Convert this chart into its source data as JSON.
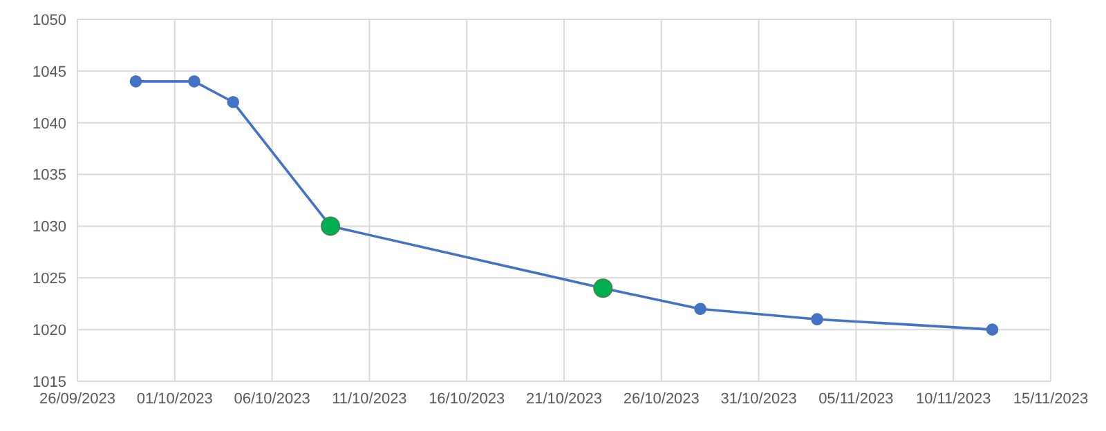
{
  "chart_data": {
    "type": "line",
    "marker": "circle",
    "line_style": "solid",
    "grid": true,
    "legend": false,
    "xlim": [
      "2023-09-26",
      "2023-11-15"
    ],
    "xticks": [
      {
        "value": "2023-09-26",
        "label": "26/09/2023"
      },
      {
        "value": "2023-10-01",
        "label": "01/10/2023"
      },
      {
        "value": "2023-10-06",
        "label": "06/10/2023"
      },
      {
        "value": "2023-10-11",
        "label": "11/10/2023"
      },
      {
        "value": "2023-10-16",
        "label": "16/10/2023"
      },
      {
        "value": "2023-10-21",
        "label": "21/10/2023"
      },
      {
        "value": "2023-10-26",
        "label": "26/10/2023"
      },
      {
        "value": "2023-10-31",
        "label": "31/10/2023"
      },
      {
        "value": "2023-11-05",
        "label": "05/11/2023"
      },
      {
        "value": "2023-11-10",
        "label": "10/11/2023"
      },
      {
        "value": "2023-11-15",
        "label": "15/11/2023"
      }
    ],
    "ylim": [
      1015,
      1050
    ],
    "yticks": [
      1015,
      1020,
      1025,
      1030,
      1035,
      1040,
      1045,
      1050
    ],
    "series": [
      {
        "type": "line",
        "color": "#4472c4",
        "x": [
          "2023-09-29",
          "2023-10-02",
          "2023-10-04",
          "2023-10-09",
          "2023-10-23",
          "2023-10-28",
          "2023-11-03",
          "2023-11-12"
        ],
        "values": [
          1044,
          1044,
          1042,
          1030,
          1024,
          1022,
          1021,
          1020
        ]
      },
      {
        "type": "scatter",
        "color": "#00b050",
        "x": [
          "2023-10-09",
          "2023-10-23"
        ],
        "values": [
          1030,
          1024
        ]
      }
    ]
  }
}
